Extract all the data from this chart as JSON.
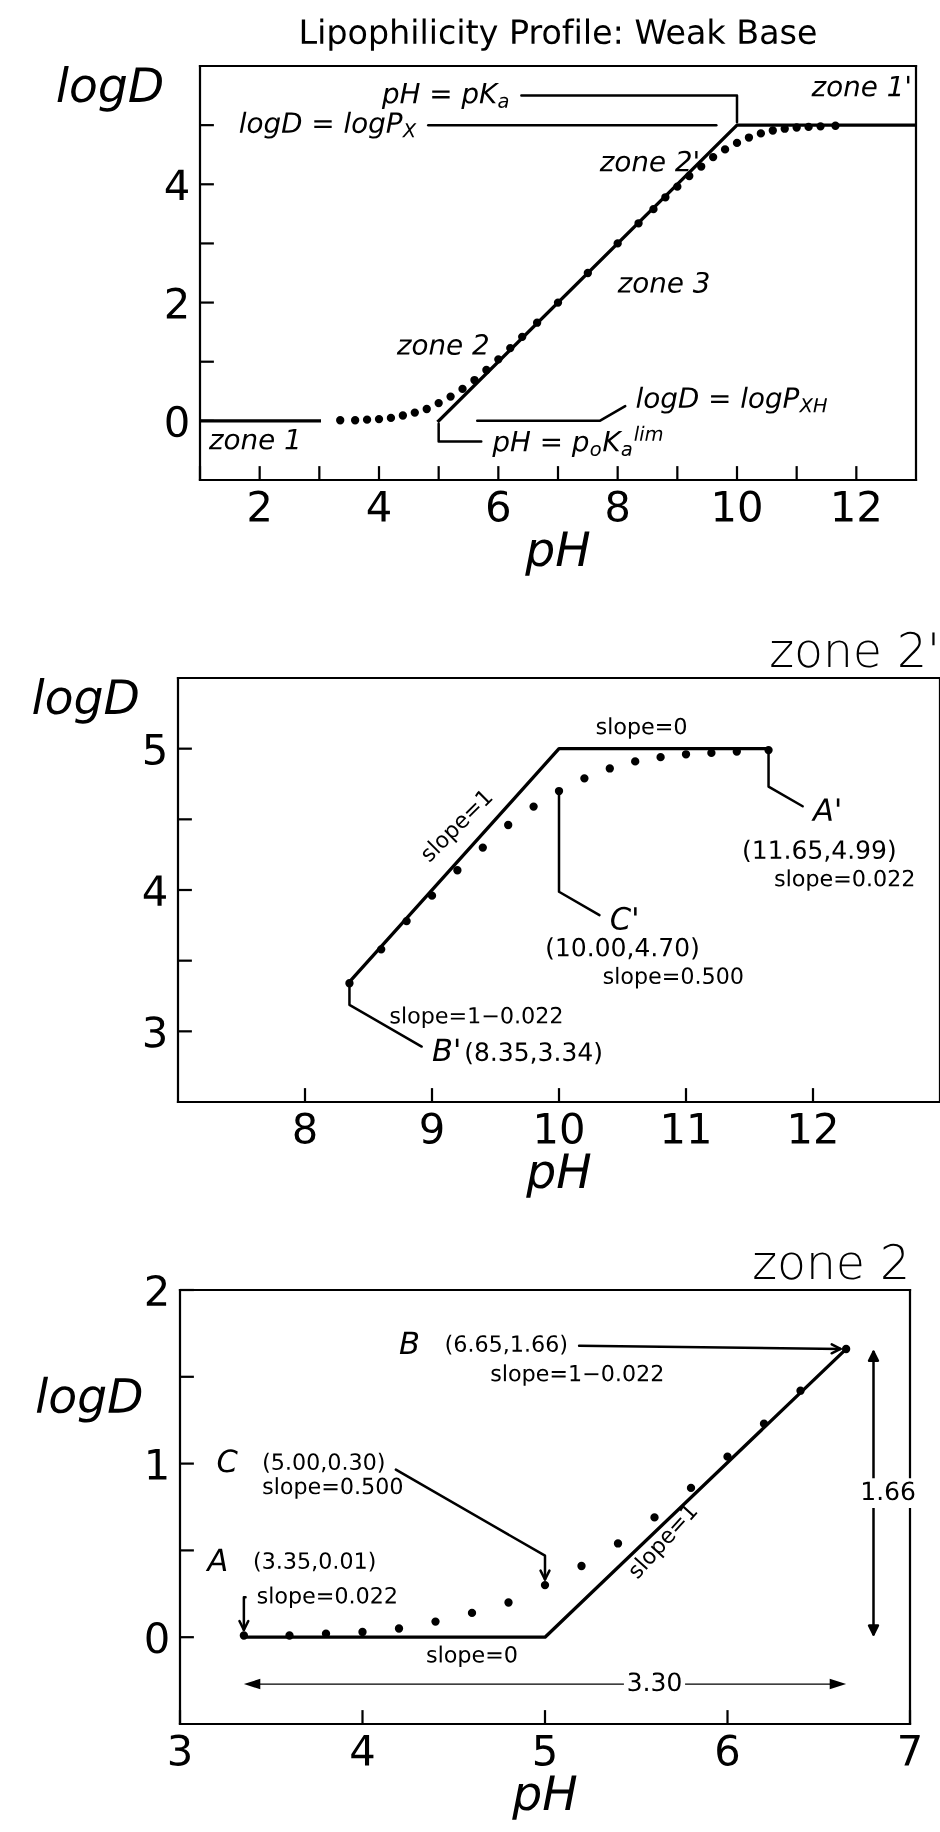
{
  "chart_data": [
    {
      "type": "line",
      "title": "Lipophilicity Profile: Weak Base",
      "xlabel": "pH",
      "ylabel": "logD",
      "xlim": [
        1,
        13
      ],
      "xticks": [
        {
          "value": 1,
          "label": null
        },
        2,
        {
          "value": 3,
          "label": null
        },
        4,
        {
          "value": 5,
          "label": null
        },
        6,
        {
          "value": 7,
          "label": null
        },
        8,
        {
          "value": 9,
          "label": null
        },
        10,
        {
          "value": 11,
          "label": null
        },
        12
      ],
      "ylim": [
        -1,
        6
      ],
      "yticks": [
        0,
        {
          "value": 1,
          "label": null
        },
        2,
        {
          "value": 3,
          "label": null
        },
        4,
        {
          "value": 5,
          "label": null
        }
      ],
      "grid": false,
      "legend": false,
      "series": [
        {
          "type": "line",
          "color": "#000000",
          "line_style": "solid",
          "x": [
            1,
            3,
            3.2,
            5,
            10,
            13
          ],
          "values": [
            0,
            0,
            null,
            0,
            5,
            5
          ]
        },
        {
          "type": "scatter",
          "color": "#000000",
          "marker": "circle",
          "x": [
            3.35,
            3.6,
            3.8,
            4.0,
            4.2,
            4.4,
            4.6,
            4.8,
            5.0,
            5.2,
            5.4,
            5.6,
            5.8,
            6.0,
            6.2,
            6.4,
            6.65,
            7.0,
            7.5,
            8.0,
            8.35,
            8.6,
            8.8,
            9.0,
            9.2,
            9.4,
            9.6,
            9.8,
            10.0,
            10.2,
            10.4,
            10.6,
            10.8,
            11.0,
            11.2,
            11.4,
            11.65
          ],
          "values": [
            0.01,
            0.01,
            0.02,
            0.03,
            0.05,
            0.09,
            0.14,
            0.2,
            0.3,
            0.41,
            0.54,
            0.69,
            0.86,
            1.04,
            1.23,
            1.42,
            1.66,
            2.0,
            2.5,
            3.0,
            3.34,
            3.58,
            3.78,
            3.96,
            4.14,
            4.3,
            4.46,
            4.59,
            4.7,
            4.79,
            4.86,
            4.91,
            4.94,
            4.96,
            4.97,
            4.98,
            4.99
          ]
        }
      ],
      "annotations": [
        "zone 1'",
        {
          "text": "pH = pK$_{a}$",
          "x": 10,
          "y": 5
        },
        "logD = logP$_{X}$",
        "zone 2'",
        "zone 3",
        "zone 2",
        "logD = logP$_{XH}$",
        {
          "text": "pH = p$_{o}$K$_{a}$$^{lim}$",
          "x": 5,
          "y": 0
        },
        "zone 1"
      ]
    },
    {
      "type": "line",
      "title": "zone 2'",
      "xlabel": "pH",
      "ylabel": "logD",
      "xlim": [
        7,
        13
      ],
      "xticks": [
        8,
        9,
        10,
        11,
        12
      ],
      "ylim": [
        2.5,
        5.5
      ],
      "yticks": [
        3,
        {
          "value": 3.5,
          "label": null
        },
        4,
        {
          "value": 4.5,
          "label": null
        },
        5
      ],
      "grid": false,
      "legend": false,
      "series": [
        {
          "type": "line",
          "color": "#000000",
          "line_style": "solid",
          "x": [
            8.35,
            10,
            11.65
          ],
          "values": [
            3.35,
            5,
            5
          ]
        },
        {
          "type": "scatter",
          "color": "#000000",
          "marker": "circle",
          "x": [
            8.35,
            8.6,
            8.8,
            9.0,
            9.2,
            9.4,
            9.6,
            9.8,
            10.0,
            10.2,
            10.4,
            10.6,
            10.8,
            11.0,
            11.2,
            11.4,
            11.65
          ],
          "values": [
            3.34,
            3.58,
            3.78,
            3.96,
            4.14,
            4.3,
            4.46,
            4.59,
            4.7,
            4.79,
            4.86,
            4.91,
            4.94,
            4.96,
            4.97,
            4.98,
            4.99
          ]
        }
      ],
      "annotations": [
        "slope=0",
        "slope=1",
        {
          "text": "A'",
          "x": 11.65,
          "y": 4.99
        },
        "(11.65,4.99)",
        "slope=0.022",
        {
          "text": "C'",
          "x": 10,
          "y": 4.7
        },
        "(10.00,4.70)",
        "slope=0.500",
        "slope=1−0.022",
        {
          "text": "B'",
          "x": 8.35,
          "y": 3.34
        },
        "(8.35,3.34)"
      ]
    },
    {
      "type": "line",
      "title": "zone 2",
      "xlabel": "pH",
      "ylabel": "logD",
      "xlim": [
        3,
        7
      ],
      "xticks": [
        3,
        4,
        5,
        6,
        7
      ],
      "ylim": [
        -0.5,
        2
      ],
      "yticks": [
        0,
        {
          "value": 0.5,
          "label": null
        },
        1,
        {
          "value": 1.5,
          "label": null
        },
        2
      ],
      "grid": false,
      "legend": false,
      "series": [
        {
          "type": "line",
          "color": "#000000",
          "line_style": "solid",
          "x": [
            3.35,
            5,
            6.65
          ],
          "values": [
            0,
            0,
            1.66
          ]
        },
        {
          "type": "scatter",
          "color": "#000000",
          "marker": "circle",
          "x": [
            3.35,
            3.6,
            3.8,
            4.0,
            4.2,
            4.4,
            4.6,
            4.8,
            5.0,
            5.2,
            5.4,
            5.6,
            5.8,
            6.0,
            6.2,
            6.4,
            6.65
          ],
          "values": [
            0.01,
            0.01,
            0.02,
            0.03,
            0.05,
            0.09,
            0.14,
            0.2,
            0.3,
            0.41,
            0.54,
            0.69,
            0.86,
            1.04,
            1.23,
            1.42,
            1.66
          ]
        }
      ],
      "annotations": [
        "B",
        {
          "text": "(6.65,1.66)",
          "x": 6.65,
          "y": 1.66
        },
        "slope=1−0.022",
        "C",
        {
          "text": "(5.00,0.30)",
          "x": 5,
          "y": 0.3
        },
        "slope=0.500",
        "A",
        "(3.35,0.01)",
        {
          "text": "slope=0.022",
          "x": 3.35,
          "y": 0.01
        },
        "slope=0",
        "slope=1",
        "1.66",
        "3.30"
      ]
    }
  ]
}
